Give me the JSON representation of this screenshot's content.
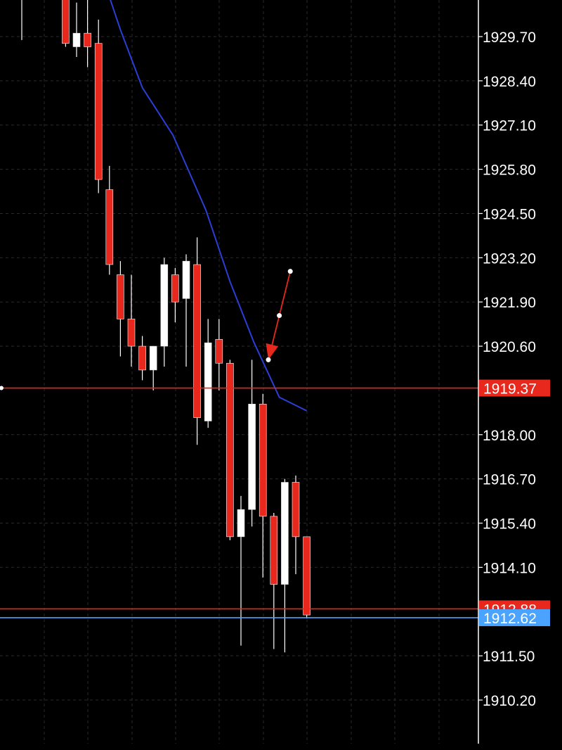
{
  "chart_data": {
    "type": "candlestick",
    "y_axis": {
      "ticks": [
        "1929.70",
        "1928.40",
        "1927.10",
        "1925.80",
        "1924.50",
        "1923.20",
        "1921.90",
        "1920.60",
        "1918.00",
        "1916.70",
        "1915.40",
        "1914.10",
        "1911.50",
        "1910.20"
      ],
      "range": [
        1908.9,
        1932.3
      ],
      "side": "right"
    },
    "grid": true,
    "colors": {
      "background": "#000000",
      "bull": "#ffffff",
      "bear": "#e8281c",
      "moving_average": "#2b3fd6",
      "arrow": "#e8281c",
      "red_level": "#e8281c",
      "blue_level": "#4aa3ff",
      "gridline": "#2a2a2a",
      "axis_text": "#ffffff"
    },
    "price_tags": [
      {
        "value": "1919.37",
        "color": "#e8281c",
        "kind": "red_level"
      },
      {
        "value": "1912.88",
        "color": "#e8281c",
        "kind": "red_level_partial"
      },
      {
        "value": "1912.62",
        "color": "#4aa3ff",
        "kind": "blue_level"
      }
    ],
    "candles": [
      {
        "o": 1932.1,
        "h": 1932.3,
        "l": 1929.6,
        "c": 1932.0
      },
      {
        "o": 1932.3,
        "h": 1932.5,
        "l": 1930.9,
        "c": 1931.4
      },
      {
        "o": 1932.2,
        "h": 1932.8,
        "l": 1930.9,
        "c": 1931.3
      },
      {
        "o": 1932.3,
        "h": 1932.7,
        "l": 1931.5,
        "c": 1932.0
      },
      {
        "o": 1931.6,
        "h": 1932.3,
        "l": 1929.4,
        "c": 1929.5
      },
      {
        "o": 1929.4,
        "h": 1930.7,
        "l": 1929.1,
        "c": 1929.8
      },
      {
        "o": 1929.8,
        "h": 1932.5,
        "l": 1928.8,
        "c": 1929.4
      },
      {
        "o": 1929.5,
        "h": 1930.2,
        "l": 1925.1,
        "c": 1925.5
      },
      {
        "o": 1925.2,
        "h": 1925.9,
        "l": 1922.7,
        "c": 1923.0
      },
      {
        "o": 1922.7,
        "h": 1923.1,
        "l": 1920.3,
        "c": 1921.4
      },
      {
        "o": 1921.4,
        "h": 1922.7,
        "l": 1920.0,
        "c": 1920.6
      },
      {
        "o": 1920.6,
        "h": 1920.9,
        "l": 1919.6,
        "c": 1919.9
      },
      {
        "o": 1919.9,
        "h": 1920.6,
        "l": 1919.3,
        "c": 1920.6
      },
      {
        "o": 1920.6,
        "h": 1923.2,
        "l": 1920.0,
        "c": 1923.0
      },
      {
        "o": 1922.7,
        "h": 1922.9,
        "l": 1921.3,
        "c": 1921.9
      },
      {
        "o": 1922.0,
        "h": 1923.3,
        "l": 1920.0,
        "c": 1923.1
      },
      {
        "o": 1923.0,
        "h": 1923.8,
        "l": 1917.7,
        "c": 1918.5
      },
      {
        "o": 1918.4,
        "h": 1921.4,
        "l": 1918.2,
        "c": 1920.7
      },
      {
        "o": 1920.8,
        "h": 1921.4,
        "l": 1919.3,
        "c": 1920.1
      },
      {
        "o": 1920.1,
        "h": 1920.2,
        "l": 1914.9,
        "c": 1915.0
      },
      {
        "o": 1915.0,
        "h": 1916.2,
        "l": 1911.8,
        "c": 1915.8
      },
      {
        "o": 1915.8,
        "h": 1920.2,
        "l": 1915.3,
        "c": 1918.9
      },
      {
        "o": 1918.9,
        "h": 1919.2,
        "l": 1913.8,
        "c": 1915.6
      },
      {
        "o": 1915.6,
        "h": 1915.7,
        "l": 1911.7,
        "c": 1913.6
      },
      {
        "o": 1913.6,
        "h": 1916.7,
        "l": 1911.6,
        "c": 1916.6
      },
      {
        "o": 1916.6,
        "h": 1916.8,
        "l": 1913.9,
        "c": 1915.0
      },
      {
        "o": 1915.0,
        "h": 1915.0,
        "l": 1912.6,
        "c": 1912.7
      }
    ],
    "moving_average": [
      {
        "candle": 6.5,
        "price": 1932.3
      },
      {
        "candle": 9,
        "price": 1929.9
      },
      {
        "candle": 11,
        "price": 1928.2
      },
      {
        "candle": 13.8,
        "price": 1926.8
      },
      {
        "candle": 16.8,
        "price": 1924.6
      },
      {
        "candle": 19,
        "price": 1922.5
      },
      {
        "candle": 21.2,
        "price": 1920.7
      },
      {
        "candle": 23.5,
        "price": 1919.1
      },
      {
        "candle": 26,
        "price": 1918.7
      }
    ],
    "annotation_arrow": {
      "points": [
        {
          "candle": 24.5,
          "price": 1922.8
        },
        {
          "candle": 23.5,
          "price": 1921.5
        },
        {
          "candle": 22.5,
          "price": 1920.2
        }
      ]
    }
  }
}
